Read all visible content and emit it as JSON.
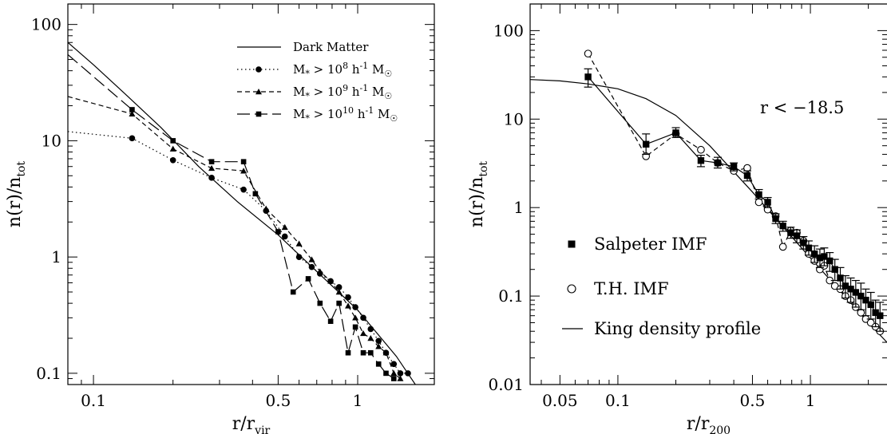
{
  "chart_data": [
    {
      "type": "line",
      "xlabel_main": "r/r",
      "xlabel_sub": "vir",
      "ylabel_main": "n(r)/n",
      "ylabel_sub": "tot",
      "xscale": "log",
      "yscale": "log",
      "xlim": [
        0.08,
        1.95
      ],
      "ylim": [
        0.08,
        150
      ],
      "grid": false,
      "legend_position": "top-right",
      "x_ticks": [
        {
          "value": 0.1,
          "label": "0.1"
        },
        {
          "value": 0.5,
          "label": "0.5"
        },
        {
          "value": 1,
          "label": "1"
        }
      ],
      "y_ticks": [
        {
          "value": 0.1,
          "label": "0.1"
        },
        {
          "value": 1,
          "label": "1"
        },
        {
          "value": 10,
          "label": "10"
        },
        {
          "value": 100,
          "label": "100"
        }
      ],
      "series": [
        {
          "name": "Dark Matter",
          "style": "solid",
          "marker": "none",
          "x": [
            0.08,
            0.1,
            0.13,
            0.18,
            0.25,
            0.35,
            0.5,
            0.7,
            1.0,
            1.4,
            1.9
          ],
          "y": [
            70,
            45,
            26,
            13,
            6.0,
            3.0,
            1.55,
            0.75,
            0.35,
            0.14,
            0.05
          ]
        },
        {
          "name": "M* > 10^8 h^-1 M☉",
          "style": "dotted",
          "marker": "circle",
          "x": [
            0.08,
            0.14,
            0.2,
            0.28,
            0.37,
            0.45,
            0.53,
            0.6,
            0.67,
            0.72,
            0.79,
            0.85,
            0.92,
            0.98,
            1.05,
            1.12,
            1.2,
            1.28,
            1.37,
            1.45,
            1.55
          ],
          "y": [
            12,
            10.5,
            6.8,
            4.8,
            3.8,
            2.5,
            1.5,
            1.0,
            0.82,
            0.72,
            0.62,
            0.55,
            0.45,
            0.37,
            0.3,
            0.24,
            0.19,
            0.15,
            0.12,
            0.1,
            0.1
          ]
        },
        {
          "name": "M* > 10^9 h^-1 M☉",
          "style": "short-dashed",
          "marker": "triangle",
          "x": [
            0.08,
            0.14,
            0.2,
            0.28,
            0.37,
            0.45,
            0.53,
            0.6,
            0.67,
            0.72,
            0.79,
            0.85,
            0.92,
            0.98,
            1.05,
            1.12,
            1.2,
            1.28,
            1.37,
            1.45
          ],
          "y": [
            24,
            17,
            8.5,
            5.8,
            5.5,
            2.6,
            1.8,
            1.3,
            0.95,
            0.75,
            0.62,
            0.5,
            0.38,
            0.3,
            0.22,
            0.2,
            0.17,
            0.15,
            0.1,
            0.09
          ]
        },
        {
          "name": "M* > 10^10 h^-1 M☉",
          "style": "long-dashed",
          "marker": "square",
          "x": [
            0.08,
            0.14,
            0.2,
            0.28,
            0.37,
            0.41,
            0.5,
            0.57,
            0.65,
            0.72,
            0.79,
            0.85,
            0.92,
            0.98,
            1.05,
            1.12,
            1.2,
            1.28,
            1.37
          ],
          "y": [
            55,
            18.5,
            10,
            6.6,
            6.6,
            3.5,
            1.65,
            0.5,
            0.65,
            0.4,
            0.28,
            0.4,
            0.15,
            0.25,
            0.15,
            0.15,
            0.12,
            0.1,
            0.09
          ]
        }
      ]
    },
    {
      "type": "scatter",
      "xlabel_main": "r/r",
      "xlabel_sub": "200",
      "ylabel_main": "n(r)/n",
      "ylabel_sub": "tot",
      "xscale": "log",
      "yscale": "log",
      "xlim": [
        0.035,
        2.5
      ],
      "ylim": [
        0.01,
        200
      ],
      "grid": false,
      "legend_position": "bottom-left",
      "annotation": "r < −18.5",
      "x_ticks": [
        {
          "value": 0.05,
          "label": "0.05"
        },
        {
          "value": 0.1,
          "label": "0.1"
        },
        {
          "value": 0.5,
          "label": "0.5"
        },
        {
          "value": 1,
          "label": "1"
        }
      ],
      "y_ticks": [
        {
          "value": 0.01,
          "label": "0.01"
        },
        {
          "value": 0.1,
          "label": "0.1"
        },
        {
          "value": 1,
          "label": "1"
        },
        {
          "value": 10,
          "label": "10"
        },
        {
          "value": 100,
          "label": "100"
        }
      ],
      "series": [
        {
          "name": "Salpeter IMF",
          "style": "solid",
          "marker": "filled-square",
          "x": [
            0.07,
            0.14,
            0.2,
            0.27,
            0.33,
            0.4,
            0.47,
            0.54,
            0.6,
            0.66,
            0.72,
            0.79,
            0.85,
            0.92,
            0.98,
            1.05,
            1.12,
            1.18,
            1.26,
            1.34,
            1.43,
            1.52,
            1.62,
            1.72,
            1.83,
            1.94,
            2.06,
            2.18,
            2.3
          ],
          "y": [
            30,
            5.2,
            7.0,
            3.4,
            3.2,
            2.9,
            2.3,
            1.4,
            1.15,
            0.75,
            0.62,
            0.52,
            0.48,
            0.4,
            0.35,
            0.3,
            0.27,
            0.28,
            0.25,
            0.2,
            0.16,
            0.13,
            0.12,
            0.11,
            0.1,
            0.09,
            0.08,
            0.065,
            0.06
          ],
          "yerr_low": [
            23,
            4.0,
            6.2,
            2.9,
            2.8,
            2.6,
            2.0,
            1.25,
            1.0,
            0.66,
            0.54,
            0.45,
            0.4,
            0.34,
            0.29,
            0.24,
            0.21,
            0.22,
            0.19,
            0.15,
            0.12,
            0.095,
            0.085,
            0.075,
            0.07,
            0.06,
            0.055,
            0.045,
            0.04
          ],
          "yerr_high": [
            37,
            6.8,
            8.0,
            3.9,
            3.7,
            3.2,
            2.6,
            1.6,
            1.3,
            0.85,
            0.7,
            0.6,
            0.56,
            0.47,
            0.42,
            0.37,
            0.34,
            0.35,
            0.31,
            0.26,
            0.21,
            0.17,
            0.16,
            0.15,
            0.14,
            0.12,
            0.11,
            0.09,
            0.085
          ]
        },
        {
          "name": "T.H. IMF",
          "style": "dashed",
          "marker": "open-circle",
          "x": [
            0.07,
            0.14,
            0.2,
            0.27,
            0.33,
            0.4,
            0.47,
            0.54,
            0.6,
            0.66,
            0.72,
            0.79,
            0.85,
            0.92,
            0.98,
            1.05,
            1.12,
            1.18,
            1.26,
            1.34,
            1.43,
            1.52,
            1.62,
            1.72,
            1.83,
            1.94,
            2.06,
            2.18,
            2.3
          ],
          "y": [
            55,
            3.8,
            6.8,
            4.5,
            3.2,
            2.6,
            2.8,
            1.15,
            0.95,
            0.8,
            0.36,
            0.55,
            0.52,
            0.42,
            0.3,
            0.25,
            0.2,
            0.22,
            0.15,
            0.13,
            0.12,
            0.1,
            0.09,
            0.075,
            0.065,
            0.055,
            0.05,
            0.045,
            0.04
          ]
        },
        {
          "name": "King density profile",
          "style": "solid",
          "marker": "none",
          "x": [
            0.035,
            0.05,
            0.07,
            0.1,
            0.14,
            0.2,
            0.3,
            0.5,
            0.7,
            1.0,
            1.4,
            2.0,
            2.5
          ],
          "y": [
            28,
            27,
            25,
            22,
            17,
            11,
            5.0,
            1.5,
            0.65,
            0.27,
            0.12,
            0.05,
            0.03
          ]
        }
      ]
    }
  ]
}
